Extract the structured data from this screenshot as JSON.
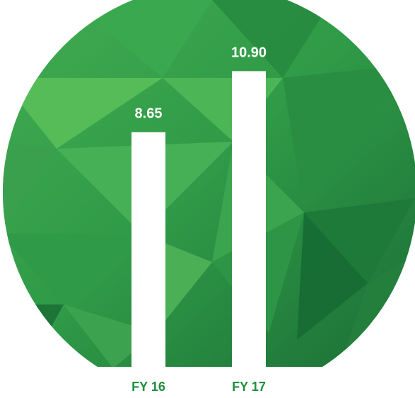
{
  "colors": {
    "background": "#ffffff",
    "circle_dark": "#1f7a3c",
    "circle_mid": "#2f9e48",
    "circle_light": "#5cc05a",
    "bar": "#ffffff",
    "category_text": "#1e8f3e",
    "value_text": "#ffffff"
  },
  "chart_data": {
    "type": "bar",
    "categories": [
      "FY 16",
      "FY 17"
    ],
    "values": [
      8.65,
      10.9
    ],
    "value_labels": [
      "8.65",
      "10.90"
    ],
    "ylim": [
      0,
      13
    ],
    "grid": false,
    "legend": "none"
  }
}
